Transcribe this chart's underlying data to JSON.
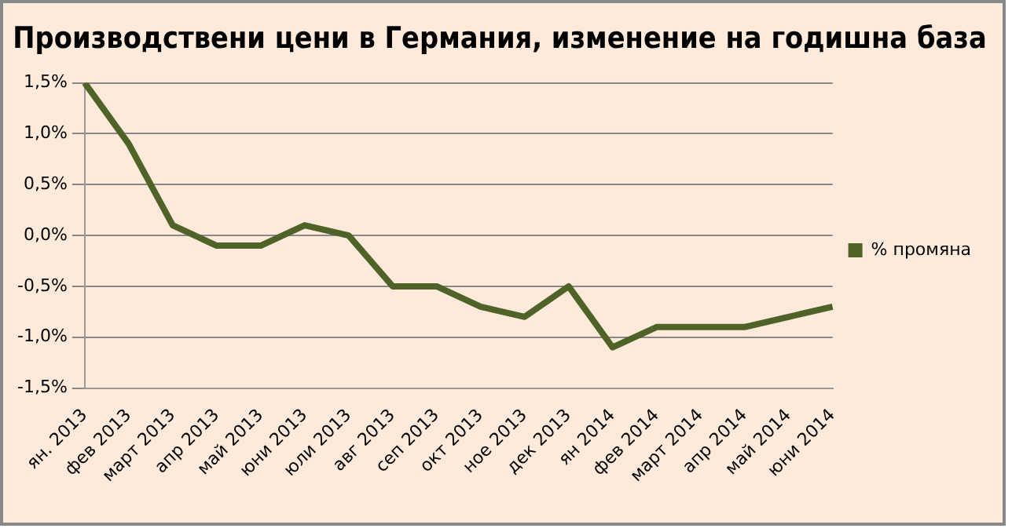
{
  "chart_data": {
    "type": "line",
    "title": "Производствени цени в Германия, изменение на годишна база",
    "categories": [
      "ян. 2013",
      "фев 2013",
      "март 2013",
      "апр 2013",
      "май 2013",
      "юни 2013",
      "юли 2013",
      "авг 2013",
      "сеп 2013",
      "окт 2013",
      "ное 2013",
      "дек 2013",
      "ян 2014",
      "фев 2014",
      "март 2014",
      "апр 2014",
      "май 2014",
      "юни 2014"
    ],
    "series": [
      {
        "name": "% промяна",
        "color": "#4f6228",
        "values": [
          1.5,
          0.9,
          0.1,
          -0.1,
          -0.1,
          0.1,
          0.0,
          -0.5,
          -0.5,
          -0.7,
          -0.8,
          -0.5,
          -1.1,
          -0.9,
          -0.9,
          -0.9,
          -0.8,
          -0.7
        ]
      }
    ],
    "ylim": [
      -1.5,
      1.5
    ],
    "yticks": [
      {
        "value": -1.5,
        "label": "-1,5%"
      },
      {
        "value": -1,
        "label": "-1,0%"
      },
      {
        "value": -0.5,
        "label": "-0,5%"
      },
      {
        "value": 0,
        "label": "0,0%"
      },
      {
        "value": 0.5,
        "label": "0,5%"
      },
      {
        "value": 1,
        "label": "1,0%"
      },
      {
        "value": 1.5,
        "label": "1,5%"
      }
    ],
    "grid": "y",
    "legend": "right",
    "marker": "none",
    "line_style": "solid"
  }
}
